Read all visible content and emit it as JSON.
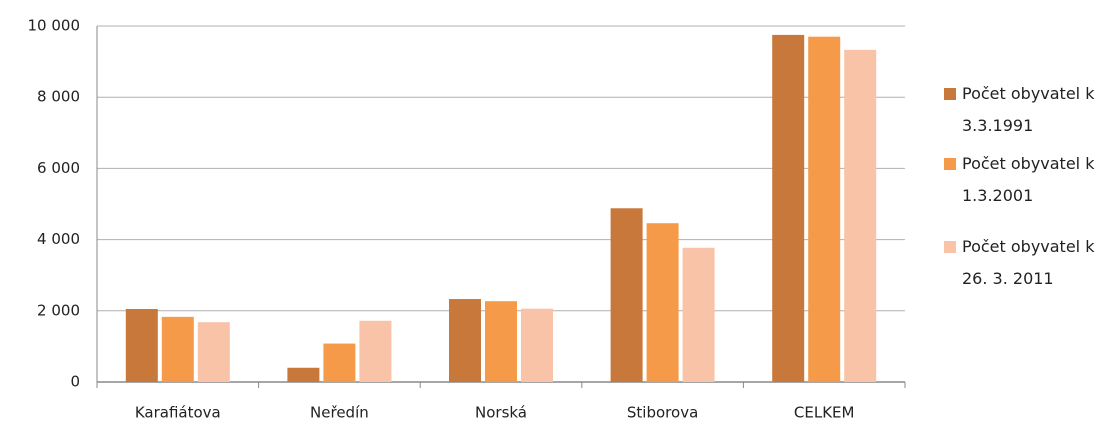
{
  "chart_data": {
    "type": "bar",
    "categories": [
      "Karafiátova",
      "Neředín",
      "Norská",
      "Stiborova",
      "CELKEM"
    ],
    "series": [
      {
        "name": "Počet obyvatel k 3.3.1991",
        "color": "#c8783a",
        "values": [
          2050,
          400,
          2330,
          4880,
          9750
        ]
      },
      {
        "name": "Počet obyvatel k 1.3.2001",
        "color": "#f59a48",
        "values": [
          1830,
          1080,
          2270,
          4460,
          9700
        ]
      },
      {
        "name": "Počet obyvatel k 26. 3. 2011",
        "color": "#f9c3a8",
        "values": [
          1680,
          1720,
          2060,
          3770,
          9330
        ]
      }
    ],
    "ylim": [
      0,
      10000
    ],
    "yticks": [
      0,
      {
        "value": 2000,
        "label": "2 000"
      },
      {
        "value": 4000,
        "label": "4 000"
      },
      {
        "value": 6000,
        "label": "6 000"
      },
      {
        "value": 8000,
        "label": "8 000"
      },
      {
        "value": 10000,
        "label": "10 000"
      }
    ],
    "grid": true,
    "legend": "right"
  }
}
